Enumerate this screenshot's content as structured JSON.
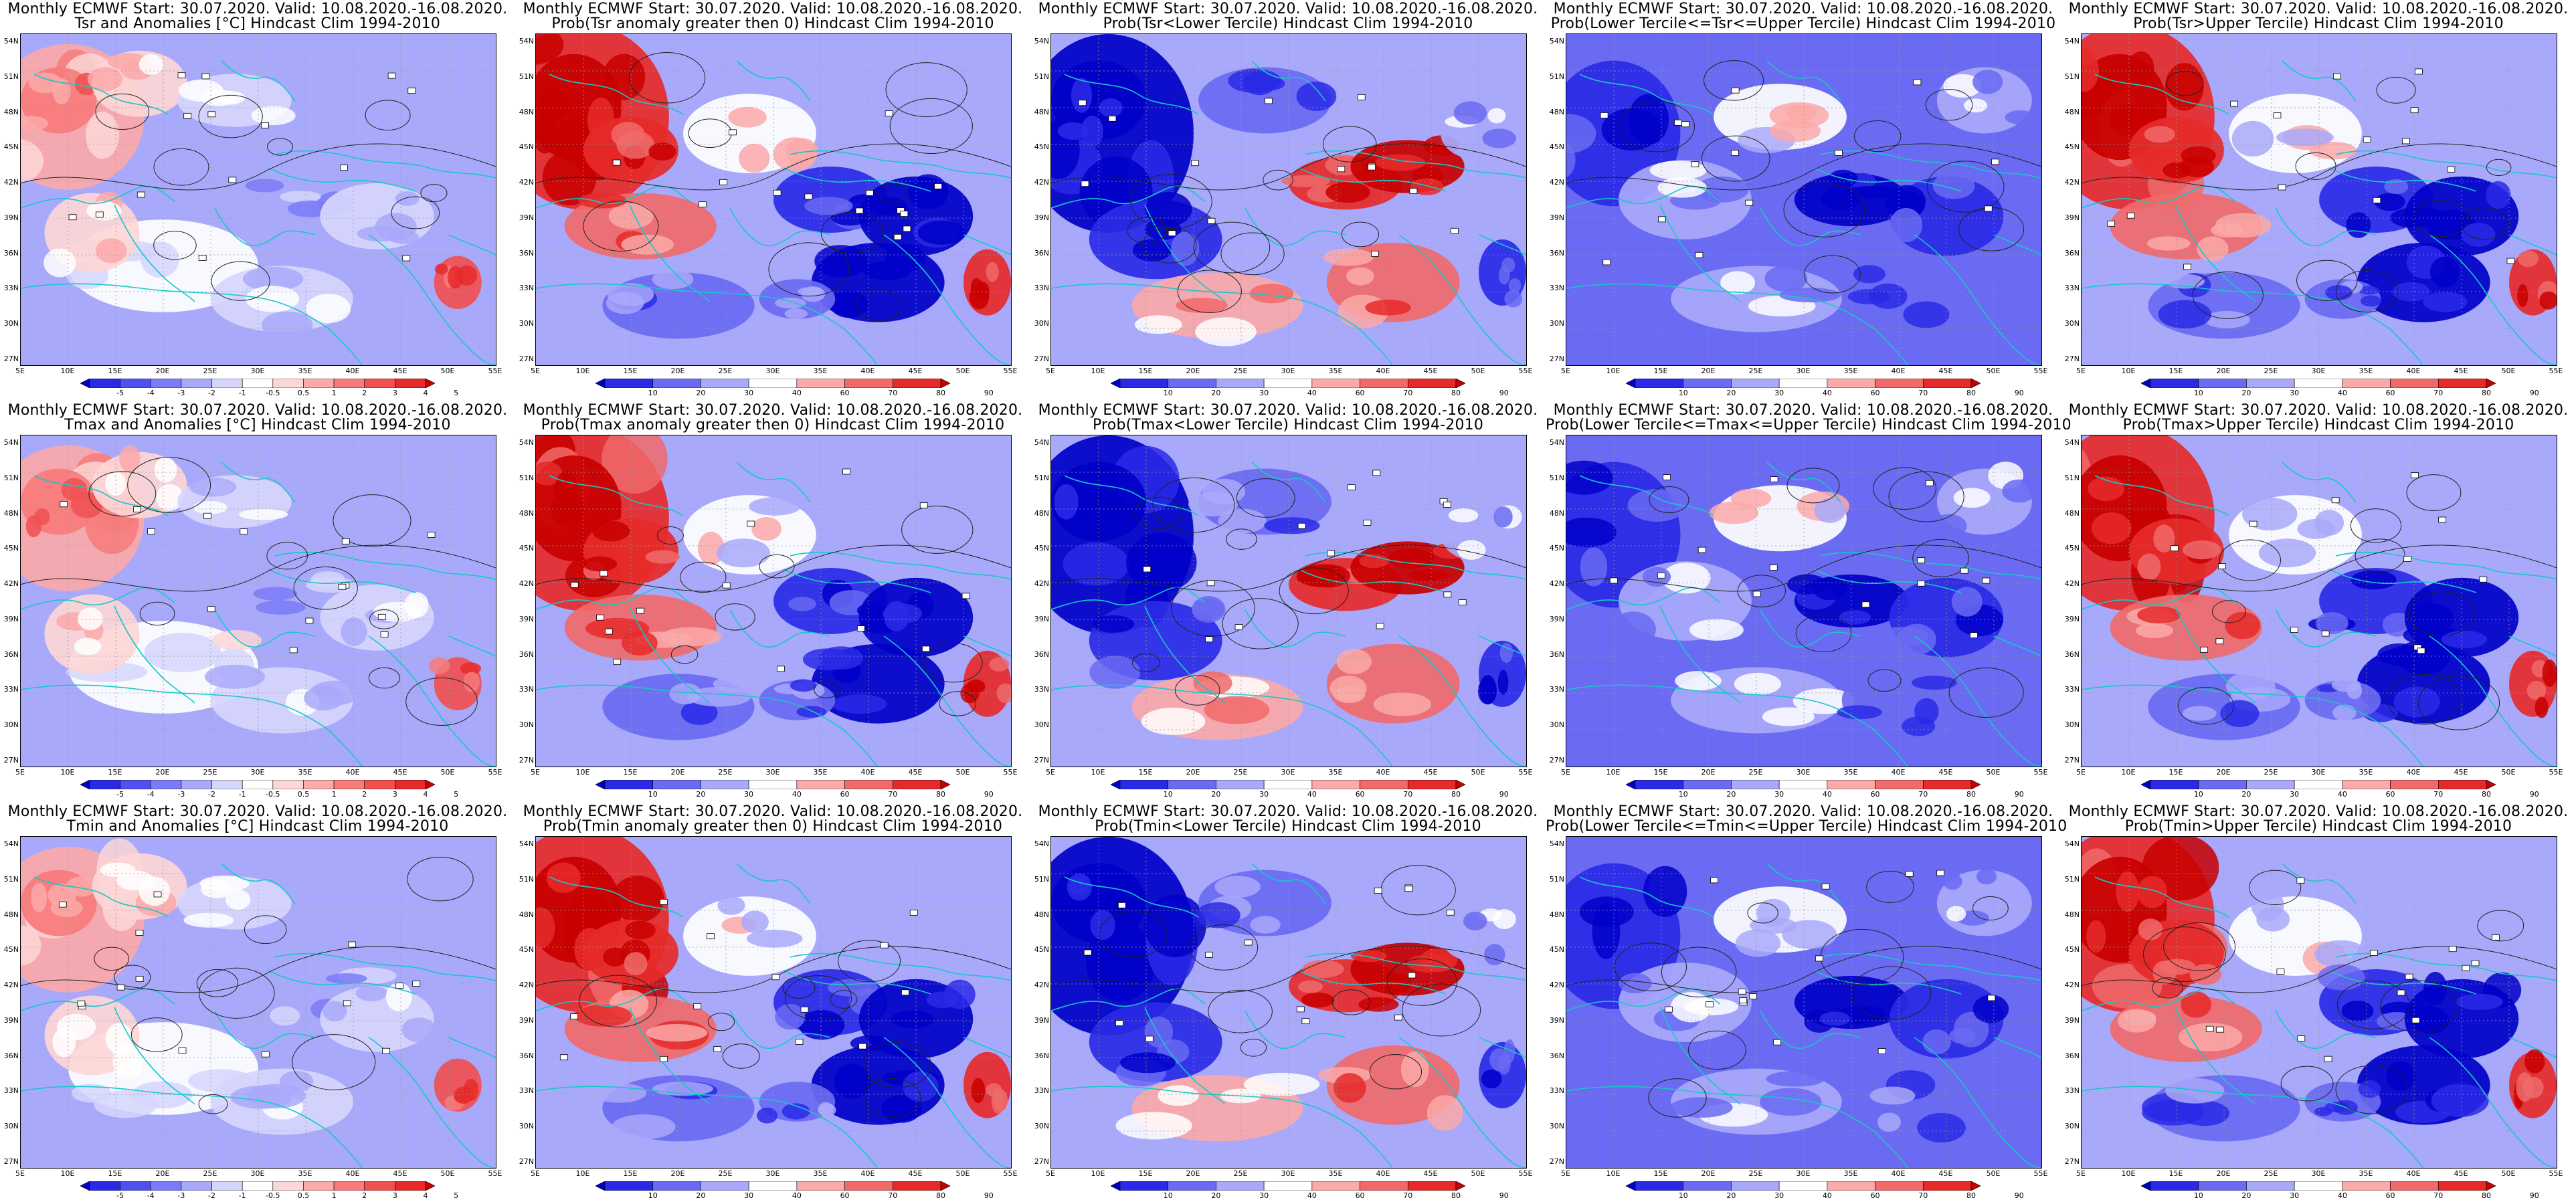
{
  "figure": {
    "common_header": "Monthly ECMWF Start: 30.07.2020. Valid: 10.08.2020.-16.08.2020.",
    "lat_ticks": [
      "54N",
      "51N",
      "48N",
      "45N",
      "42N",
      "39N",
      "36N",
      "33N",
      "30N",
      "27N"
    ],
    "lon_ticks": [
      "5E",
      "10E",
      "15E",
      "20E",
      "25E",
      "30E",
      "35E",
      "40E",
      "45E",
      "50E",
      "55E"
    ],
    "colorbars": {
      "anomaly": {
        "labels": [
          "-5",
          "-4",
          "-3",
          "-2",
          "-1",
          "-0.5",
          "0.5",
          "1",
          "2",
          "3",
          "4",
          "5"
        ],
        "colors": [
          "#0000c8",
          "#2a2ae6",
          "#5050f0",
          "#7b7bf7",
          "#a9a9fb",
          "#d6d6fd",
          "#ffffff",
          "#fdd6d6",
          "#fba9a9",
          "#f77b7b",
          "#f05050",
          "#e62a2a",
          "#c80000"
        ]
      },
      "probability": {
        "labels": [
          "10",
          "20",
          "30",
          "40",
          "60",
          "70",
          "80",
          "90"
        ],
        "colors": [
          "#0000c8",
          "#2a2ae6",
          "#6a6af2",
          "#a9a9fb",
          "#ffffff",
          "#fba9a9",
          "#f06a6a",
          "#e62a2a",
          "#c80000"
        ]
      }
    }
  },
  "panels": [
    {
      "title_line1": "Monthly ECMWF Start: 30.07.2020. Valid: 10.08.2020.-16.08.2020.",
      "title_line2": "Tsr and Anomalies [°C] Hindcast Clim 1994-2010",
      "colorbar": "anomaly",
      "dominant_pattern": "warm-west-cool-east-weak"
    },
    {
      "title_line1": "Monthly ECMWF Start: 30.07.2020. Valid: 10.08.2020.-16.08.2020.",
      "title_line2": "Prob(Tsr anomaly greater then 0) Hindcast Clim 1994-2010",
      "colorbar": "probability",
      "dominant_pattern": "warm-west-cool-east"
    },
    {
      "title_line1": "Monthly ECMWF Start: 30.07.2020. Valid: 10.08.2020.-16.08.2020.",
      "title_line2": "Prob(Tsr<Lower Tercile) Hindcast Clim 1994-2010",
      "colorbar": "probability",
      "dominant_pattern": "cool-west-warm-east"
    },
    {
      "title_line1": "Monthly ECMWF Start: 30.07.2020. Valid: 10.08.2020.-16.08.2020.",
      "title_line2": "Prob(Lower Tercile<=Tsr<=Upper Tercile) Hindcast Clim 1994-2010",
      "colorbar": "probability",
      "dominant_pattern": "mostly-blue"
    },
    {
      "title_line1": "Monthly ECMWF Start: 30.07.2020. Valid: 10.08.2020.-16.08.2020.",
      "title_line2": "Prob(Tsr>Upper Tercile) Hindcast Clim 1994-2010",
      "colorbar": "probability",
      "dominant_pattern": "warm-west-cool-east"
    },
    {
      "title_line1": "Monthly ECMWF Start: 30.07.2020. Valid: 10.08.2020.-16.08.2020.",
      "title_line2": "Tmax and Anomalies [°C] Hindcast Clim 1994-2010",
      "colorbar": "anomaly",
      "dominant_pattern": "warm-west-cool-east-weak"
    },
    {
      "title_line1": "Monthly ECMWF Start: 30.07.2020. Valid: 10.08.2020.-16.08.2020.",
      "title_line2": "Prob(Tmax anomaly greater then 0) Hindcast Clim 1994-2010",
      "colorbar": "probability",
      "dominant_pattern": "warm-west-cool-east"
    },
    {
      "title_line1": "Monthly ECMWF Start: 30.07.2020. Valid: 10.08.2020.-16.08.2020.",
      "title_line2": "Prob(Tmax<Lower Tercile) Hindcast Clim 1994-2010",
      "colorbar": "probability",
      "dominant_pattern": "cool-west-warm-east"
    },
    {
      "title_line1": "Monthly ECMWF Start: 30.07.2020. Valid: 10.08.2020.-16.08.2020.",
      "title_line2": "Prob(Lower Tercile<=Tmax<=Upper Tercile) Hindcast Clim 1994-2010",
      "colorbar": "probability",
      "dominant_pattern": "mostly-blue"
    },
    {
      "title_line1": "Monthly ECMWF Start: 30.07.2020. Valid: 10.08.2020.-16.08.2020.",
      "title_line2": "Prob(Tmax>Upper Tercile) Hindcast Clim 1994-2010",
      "colorbar": "probability",
      "dominant_pattern": "warm-west-cool-east"
    },
    {
      "title_line1": "Monthly ECMWF Start: 30.07.2020. Valid: 10.08.2020.-16.08.2020.",
      "title_line2": "Tmin and Anomalies [°C] Hindcast Clim 1994-2010",
      "colorbar": "anomaly",
      "dominant_pattern": "warm-west-cool-east-weak"
    },
    {
      "title_line1": "Monthly ECMWF Start: 30.07.2020. Valid: 10.08.2020.-16.08.2020.",
      "title_line2": "Prob(Tmin anomaly greater then 0) Hindcast Clim 1994-2010",
      "colorbar": "probability",
      "dominant_pattern": "warm-west-cool-east"
    },
    {
      "title_line1": "Monthly ECMWF Start: 30.07.2020. Valid: 10.08.2020.-16.08.2020.",
      "title_line2": "Prob(Tmin<Lower Tercile) Hindcast Clim 1994-2010",
      "colorbar": "probability",
      "dominant_pattern": "cool-west-warm-east"
    },
    {
      "title_line1": "Monthly ECMWF Start: 30.07.2020. Valid: 10.08.2020.-16.08.2020.",
      "title_line2": "Prob(Lower Tercile<=Tmin<=Upper Tercile) Hindcast Clim 1994-2010",
      "colorbar": "probability",
      "dominant_pattern": "mostly-blue"
    },
    {
      "title_line1": "Monthly ECMWF Start: 30.07.2020. Valid: 10.08.2020.-16.08.2020.",
      "title_line2": "Prob(Tmin>Upper Tercile) Hindcast Clim 1994-2010",
      "colorbar": "probability",
      "dominant_pattern": "warm-west-cool-east"
    }
  ]
}
